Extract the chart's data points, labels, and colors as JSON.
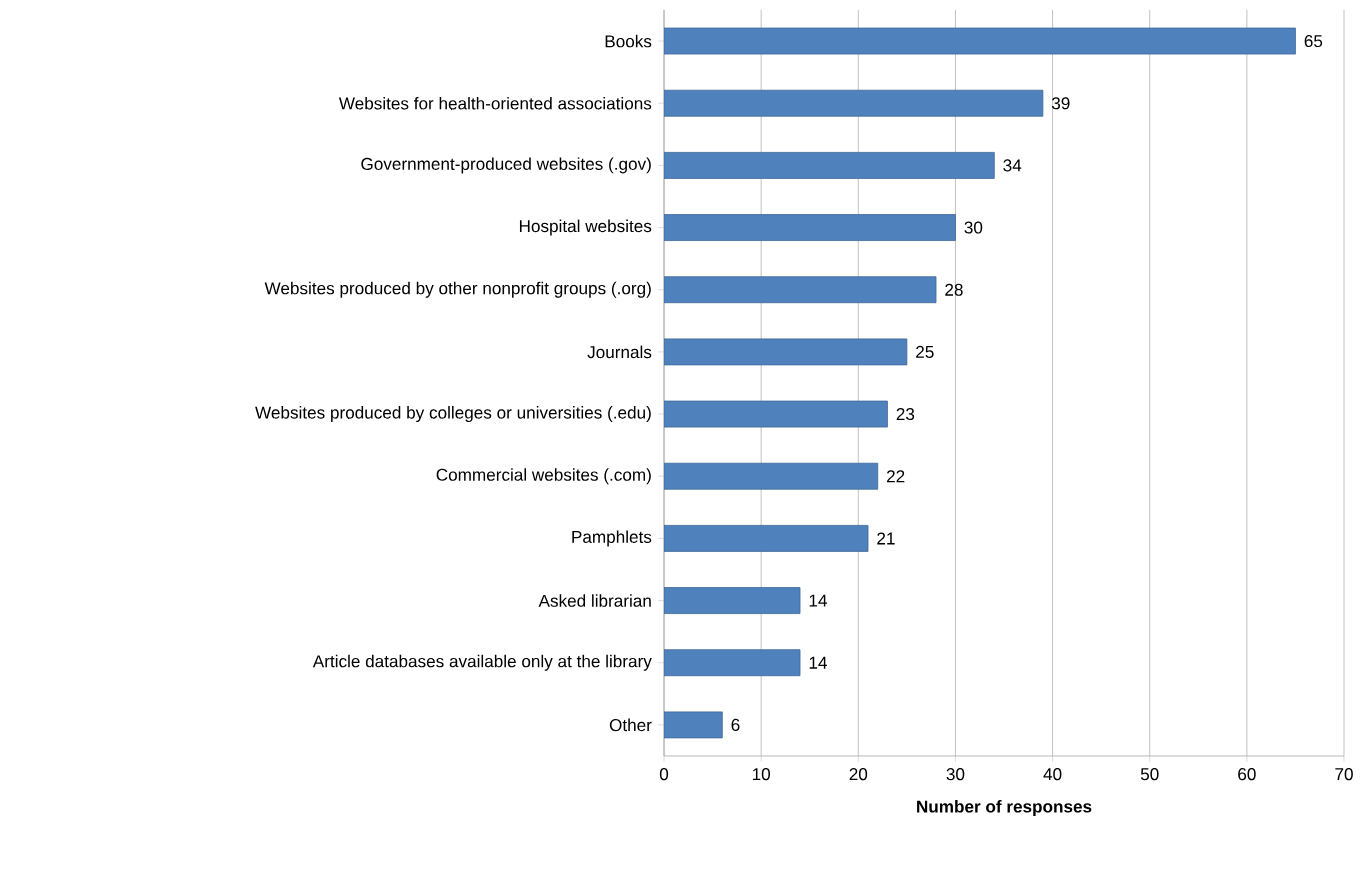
{
  "chart_data": {
    "type": "bar",
    "orientation": "horizontal",
    "xlabel": "Number of responses",
    "categories": [
      "Books",
      "Websites for health-oriented associations",
      "Government-produced websites (.gov)",
      "Hospital websites",
      "Websites produced by other nonprofit groups (.org)",
      "Journals",
      "Websites produced by colleges or universities (.edu)",
      "Commercial websites (.com)",
      "Pamphlets",
      "Asked librarian",
      "Article databases available only at the library",
      "Other"
    ],
    "values": [
      65,
      39,
      34,
      30,
      28,
      25,
      23,
      22,
      21,
      14,
      14,
      6
    ],
    "color": "#4f81bd",
    "xlim": [
      0,
      70
    ],
    "xticks": [
      0,
      10,
      20,
      30,
      40,
      50,
      60,
      70
    ],
    "grid": "x",
    "data_labels": true
  }
}
